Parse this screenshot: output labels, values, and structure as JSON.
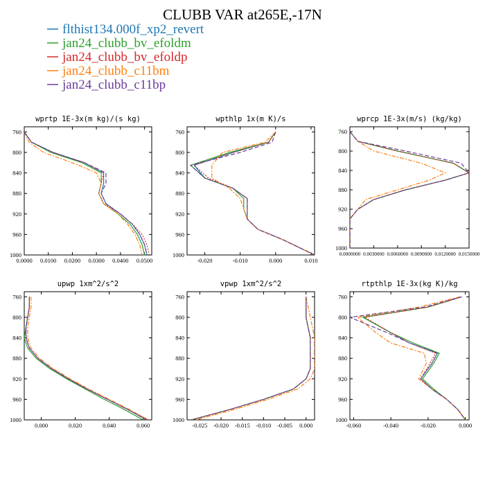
{
  "title": "CLUBB VAR at265E,-17N",
  "legend": [
    {
      "name": "flthist134.000f_xp2_revert",
      "color": "#1f77b4",
      "dash": "solid"
    },
    {
      "name": "jan24_clubb_bv_efoldm",
      "color": "#2ca02c",
      "dash": "solid"
    },
    {
      "name": "jan24_clubb_bv_efoldp",
      "color": "#d62728",
      "dash": "dotted"
    },
    {
      "name": "jan24_clubb_c11bm",
      "color": "#ff7f0e",
      "dash": "dashdot"
    },
    {
      "name": "jan24_clubb_c11bp",
      "color": "#6a3d9a",
      "dash": "dashed"
    }
  ],
  "chart_data": [
    {
      "type": "line",
      "title": "wprtp  1E-3x(m kg)/(s kg)",
      "ylim": [
        1000,
        750
      ],
      "yticks": [
        760,
        800,
        840,
        880,
        920,
        960,
        1000
      ],
      "xlim": [
        0.0,
        0.053
      ],
      "xticks": [
        0.0,
        0.01,
        0.02,
        0.03,
        0.04,
        0.05
      ],
      "xtick_labels": [
        "0.0000",
        "0.0100",
        "0.0200",
        "0.0300",
        "0.0400",
        "0.0500"
      ],
      "y": [
        760,
        780,
        800,
        820,
        840,
        860,
        880,
        900,
        920,
        940,
        960,
        980,
        1000
      ],
      "series": [
        {
          "x": [
            0.0,
            0.003,
            0.012,
            0.025,
            0.033,
            0.033,
            0.032,
            0.034,
            0.04,
            0.045,
            0.048,
            0.05,
            0.051
          ]
        },
        {
          "x": [
            0.0,
            0.003,
            0.011,
            0.024,
            0.032,
            0.032,
            0.031,
            0.033,
            0.039,
            0.044,
            0.047,
            0.049,
            0.05
          ]
        },
        {
          "x": [
            0.0,
            0.003,
            0.012,
            0.025,
            0.033,
            0.032,
            0.031,
            0.033,
            0.04,
            0.045,
            0.049,
            0.051,
            0.052
          ]
        },
        {
          "x": [
            0.0,
            0.002,
            0.008,
            0.02,
            0.03,
            0.032,
            0.031,
            0.033,
            0.039,
            0.043,
            0.046,
            0.048,
            0.049
          ]
        },
        {
          "x": [
            0.0,
            0.003,
            0.012,
            0.025,
            0.034,
            0.034,
            0.032,
            0.034,
            0.04,
            0.045,
            0.048,
            0.05,
            0.051
          ]
        }
      ]
    },
    {
      "type": "line",
      "title": "wpthlp  1x(m K)/s",
      "ylim": [
        1000,
        750
      ],
      "yticks": [
        760,
        800,
        840,
        880,
        920,
        960,
        1000
      ],
      "xlim": [
        -0.025,
        0.011
      ],
      "xticks": [
        -0.02,
        -0.01,
        0.0,
        0.01
      ],
      "xtick_labels": [
        "-0.020",
        "-0.010",
        "0.000",
        "0.010"
      ],
      "y": [
        760,
        780,
        800,
        825,
        850,
        870,
        890,
        910,
        930,
        950,
        970,
        990,
        1000
      ],
      "series": [
        {
          "x": [
            0.0,
            -0.002,
            -0.012,
            -0.023,
            -0.02,
            -0.012,
            -0.008,
            -0.008,
            -0.008,
            -0.005,
            0.002,
            0.008,
            0.011
          ]
        },
        {
          "x": [
            0.0,
            -0.002,
            -0.013,
            -0.024,
            -0.02,
            -0.012,
            -0.009,
            -0.009,
            -0.008,
            -0.005,
            0.002,
            0.008,
            0.011
          ]
        },
        {
          "x": [
            0.0,
            -0.002,
            -0.012,
            -0.023,
            -0.019,
            -0.012,
            -0.008,
            -0.008,
            -0.008,
            -0.005,
            0.002,
            0.008,
            0.011
          ]
        },
        {
          "x": [
            0.0,
            -0.003,
            -0.015,
            -0.018,
            -0.018,
            -0.013,
            -0.01,
            -0.009,
            -0.008,
            -0.005,
            0.002,
            0.008,
            0.011
          ]
        },
        {
          "x": [
            0.0,
            -0.001,
            -0.01,
            -0.024,
            -0.02,
            -0.012,
            -0.008,
            -0.008,
            -0.008,
            -0.005,
            0.002,
            0.008,
            0.011
          ]
        }
      ]
    },
    {
      "type": "line",
      "title": "wprcp  1E-3x(m/s) (kg/kg)",
      "ylim": [
        1000,
        750
      ],
      "yticks": [
        760,
        800,
        840,
        880,
        920,
        960,
        1000
      ],
      "xlim": [
        0.0,
        0.015
      ],
      "xticks": [
        0.0,
        0.003,
        0.006,
        0.009,
        0.012,
        0.015
      ],
      "xtick_labels": [
        "0.0000000",
        "0.0030000",
        "0.0060000",
        "0.0090000",
        "0.0120000",
        "0.0150000"
      ],
      "y": [
        760,
        780,
        800,
        825,
        845,
        860,
        880,
        900,
        920,
        940,
        960,
        1000
      ],
      "series": [
        {
          "x": [
            0.0,
            0.001,
            0.006,
            0.013,
            0.015,
            0.012,
            0.007,
            0.003,
            0.001,
            0.0,
            0.0,
            0.0
          ]
        },
        {
          "x": [
            0.0,
            0.001,
            0.006,
            0.013,
            0.015,
            0.012,
            0.007,
            0.003,
            0.001,
            0.0,
            0.0,
            0.0
          ]
        },
        {
          "x": [
            0.0,
            0.001,
            0.006,
            0.013,
            0.015,
            0.012,
            0.007,
            0.003,
            0.001,
            0.0,
            0.0,
            0.0
          ]
        },
        {
          "x": [
            0.0,
            0.001,
            0.003,
            0.009,
            0.012,
            0.01,
            0.006,
            0.002,
            0.001,
            0.0,
            0.0,
            0.0
          ]
        },
        {
          "x": [
            0.0,
            0.001,
            0.007,
            0.014,
            0.015,
            0.012,
            0.007,
            0.003,
            0.001,
            0.0,
            0.0,
            0.0
          ]
        }
      ]
    },
    {
      "type": "line",
      "title": "upwp  1xm^2/s^2",
      "ylim": [
        1000,
        750
      ],
      "yticks": [
        760,
        800,
        840,
        880,
        920,
        960,
        1000
      ],
      "xlim": [
        -0.01,
        0.065
      ],
      "xticks": [
        0.0,
        0.02,
        0.04,
        0.06
      ],
      "xtick_labels": [
        "0.000",
        "0.020",
        "0.040",
        "0.060"
      ],
      "y": [
        760,
        780,
        800,
        820,
        840,
        860,
        880,
        900,
        920,
        940,
        960,
        980,
        1000
      ],
      "series": [
        {
          "x": [
            -0.007,
            -0.007,
            -0.008,
            -0.009,
            -0.009,
            -0.007,
            -0.002,
            0.006,
            0.016,
            0.027,
            0.039,
            0.051,
            0.062
          ]
        },
        {
          "x": [
            -0.007,
            -0.007,
            -0.008,
            -0.009,
            -0.01,
            -0.008,
            -0.003,
            0.005,
            0.015,
            0.026,
            0.037,
            0.049,
            0.06
          ]
        },
        {
          "x": [
            -0.007,
            -0.007,
            -0.008,
            -0.009,
            -0.009,
            -0.007,
            -0.002,
            0.006,
            0.016,
            0.027,
            0.039,
            0.051,
            0.063
          ]
        },
        {
          "x": [
            -0.006,
            -0.006,
            -0.007,
            -0.008,
            -0.008,
            -0.006,
            -0.001,
            0.007,
            0.017,
            0.028,
            0.04,
            0.052,
            0.063
          ]
        },
        {
          "x": [
            -0.007,
            -0.007,
            -0.008,
            -0.009,
            -0.009,
            -0.007,
            -0.002,
            0.006,
            0.016,
            0.027,
            0.039,
            0.051,
            0.062
          ]
        }
      ]
    },
    {
      "type": "line",
      "title": "vpwp  1xm^2/s^2",
      "ylim": [
        1000,
        750
      ],
      "yticks": [
        760,
        800,
        840,
        880,
        920,
        960,
        1000
      ],
      "xlim": [
        -0.028,
        0.002
      ],
      "xticks": [
        -0.025,
        -0.02,
        -0.015,
        -0.01,
        -0.005,
        0.0
      ],
      "xtick_labels": [
        "-0.025",
        "-0.020",
        "-0.015",
        "-0.010",
        "-0.005",
        "0.000"
      ],
      "y": [
        760,
        800,
        840,
        880,
        900,
        920,
        940,
        960,
        980,
        1000
      ],
      "series": [
        {
          "x": [
            0.0,
            0.0,
            0.001,
            0.001,
            0.001,
            0.0,
            -0.003,
            -0.01,
            -0.018,
            -0.027
          ]
        },
        {
          "x": [
            0.0,
            0.0,
            0.001,
            0.001,
            0.001,
            0.0,
            -0.003,
            -0.01,
            -0.018,
            -0.027
          ]
        },
        {
          "x": [
            0.0,
            0.0,
            0.001,
            0.001,
            0.001,
            0.0,
            -0.003,
            -0.01,
            -0.018,
            -0.027
          ]
        },
        {
          "x": [
            0.0,
            0.001,
            0.002,
            0.002,
            0.002,
            0.001,
            -0.002,
            -0.009,
            -0.017,
            -0.026
          ]
        },
        {
          "x": [
            0.0,
            0.0,
            0.001,
            0.001,
            0.001,
            0.0,
            -0.003,
            -0.01,
            -0.018,
            -0.027
          ]
        }
      ]
    },
    {
      "type": "line",
      "title": "rtpthlp  1E-3x(kg K)/kg",
      "ylim": [
        1000,
        750
      ],
      "yticks": [
        760,
        800,
        840,
        880,
        920,
        960,
        1000
      ],
      "xlim": [
        -0.062,
        0.002
      ],
      "xticks": [
        -0.06,
        -0.04,
        -0.02,
        0.0
      ],
      "xtick_labels": [
        "-0.060",
        "-0.040",
        "-0.020",
        "0.000"
      ],
      "y": [
        760,
        780,
        800,
        830,
        850,
        870,
        890,
        920,
        940,
        960,
        980,
        1000
      ],
      "series": [
        {
          "x": [
            -0.002,
            -0.02,
            -0.055,
            -0.04,
            -0.03,
            -0.015,
            -0.018,
            -0.024,
            -0.018,
            -0.01,
            -0.004,
            0.0
          ]
        },
        {
          "x": [
            -0.002,
            -0.02,
            -0.055,
            -0.04,
            -0.028,
            -0.014,
            -0.017,
            -0.023,
            -0.017,
            -0.01,
            -0.004,
            0.0
          ]
        },
        {
          "x": [
            -0.002,
            -0.02,
            -0.054,
            -0.04,
            -0.03,
            -0.016,
            -0.019,
            -0.024,
            -0.018,
            -0.01,
            -0.004,
            0.0
          ]
        },
        {
          "x": [
            -0.003,
            -0.025,
            -0.058,
            -0.048,
            -0.04,
            -0.022,
            -0.021,
            -0.025,
            -0.018,
            -0.01,
            -0.004,
            0.0
          ]
        },
        {
          "x": [
            -0.002,
            -0.022,
            -0.062,
            -0.042,
            -0.03,
            -0.015,
            -0.018,
            -0.024,
            -0.018,
            -0.01,
            -0.004,
            0.0
          ]
        }
      ]
    }
  ]
}
